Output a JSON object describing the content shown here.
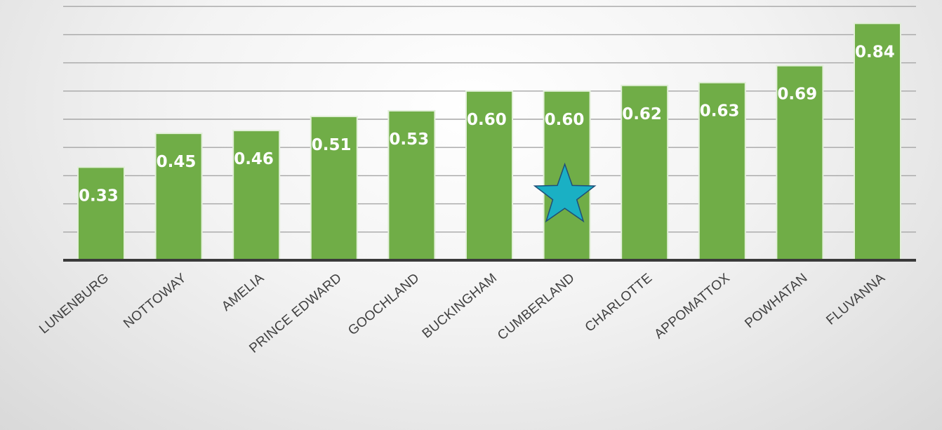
{
  "chart_data": {
    "type": "bar",
    "categories": [
      "LUNENBURG",
      "NOTTOWAY",
      "AMELIA",
      "PRINCE EDWARD",
      "GOOCHLAND",
      "BUCKINGHAM",
      "CUMBERLAND",
      "CHARLOTTE",
      "APPOMATTOX",
      "POWHATAN",
      "FLUVANNA"
    ],
    "values": [
      0.33,
      0.45,
      0.46,
      0.51,
      0.53,
      0.6,
      0.6,
      0.62,
      0.63,
      0.69,
      0.84
    ],
    "data_labels": [
      "0.33",
      "0.45",
      "0.46",
      "0.51",
      "0.53",
      "0.60",
      "0.60",
      "0.62",
      "0.63",
      "0.69",
      "0.84"
    ],
    "title": "",
    "xlabel": "",
    "ylabel": "",
    "ylim": [
      0,
      0.9
    ],
    "gridlines": [
      0.1,
      0.2,
      0.3,
      0.4,
      0.5,
      0.6,
      0.7,
      0.8,
      0.9
    ],
    "grid": true,
    "legend": "none",
    "highlight": {
      "category": "CUMBERLAND",
      "marker": "star-icon",
      "color": "#1ab0c4"
    },
    "colors": {
      "bar": "#70ad47",
      "bar_edge": "#e2efd9",
      "grid": "#a6a6a6",
      "axis": "#3a3a3a",
      "label": "#ffffff",
      "category_text": "#404040"
    }
  }
}
